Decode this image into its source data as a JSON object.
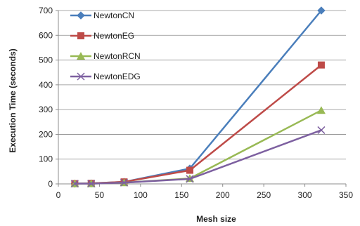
{
  "chart_data": {
    "type": "line",
    "xlabel": "Mesh size",
    "ylabel": "Execution Time (seconds)",
    "xlim": [
      0,
      350
    ],
    "ylim": [
      0,
      700
    ],
    "xticks": [
      0,
      50,
      100,
      150,
      200,
      250,
      300,
      350
    ],
    "yticks": [
      0,
      100,
      200,
      300,
      400,
      500,
      600,
      700
    ],
    "grid": "horizontal",
    "legend_position": "top-left",
    "x": [
      20,
      40,
      80,
      160,
      320
    ],
    "series": [
      {
        "name": "NewtonCN",
        "color": "#4a7ebb",
        "marker": "diamond",
        "values": [
          1,
          2,
          8,
          62,
          700
        ]
      },
      {
        "name": "NewtonEG",
        "color": "#be4b48",
        "marker": "square",
        "values": [
          1,
          2,
          8,
          55,
          480
        ]
      },
      {
        "name": "NewtonRCN",
        "color": "#98b954",
        "marker": "triangle",
        "values": [
          1,
          1,
          5,
          22,
          297
        ]
      },
      {
        "name": "NewtonEDG",
        "color": "#7d60a0",
        "marker": "x",
        "values": [
          1,
          1,
          5,
          20,
          217
        ]
      }
    ]
  }
}
